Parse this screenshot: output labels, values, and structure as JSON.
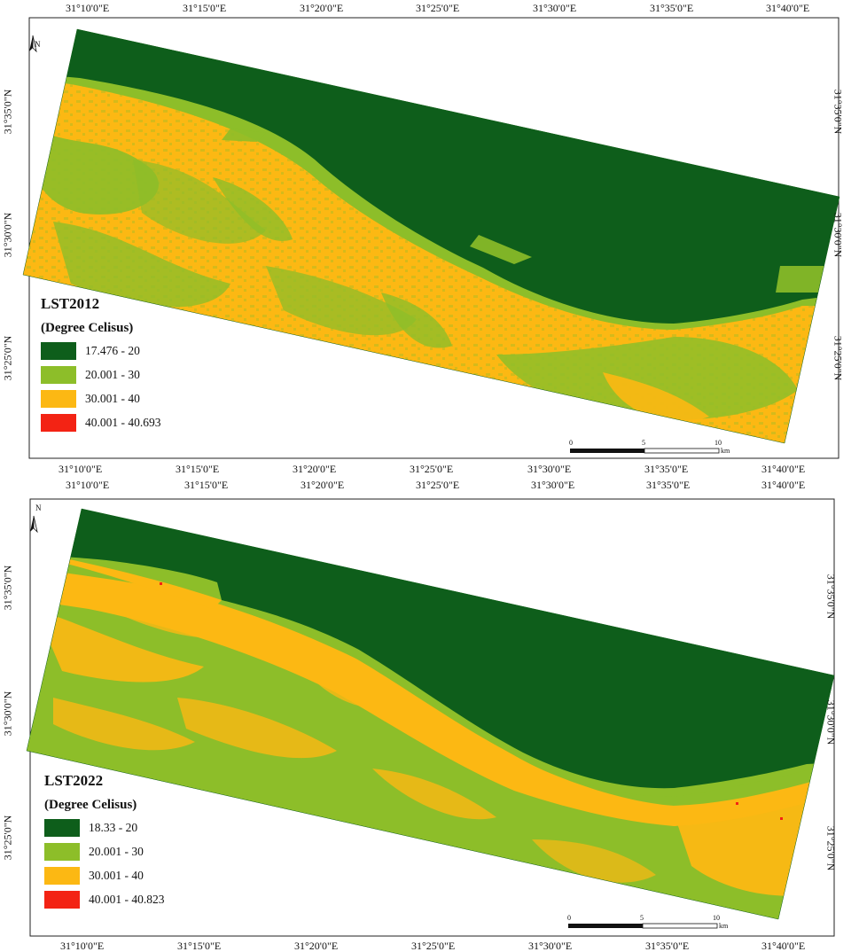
{
  "colors": {
    "dark_green": "#0e5e1b",
    "light_green": "#8dbe29",
    "yellow": "#fcb813",
    "red": "#f32314"
  },
  "maps": [
    {
      "legend_title": "LST2012",
      "legend_unit": "(Degree Celisus)",
      "legend": [
        "17.476 - 20",
        "20.001 - 30",
        "30.001 - 40",
        "40.001 - 40.693"
      ],
      "top_ticks": [
        "31°10'0\"E",
        "31°15'0\"E",
        "31°20'0\"E",
        "31°25'0\"E",
        "31°30'0\"E",
        "31°35'0\"E",
        "31°40'0\"E"
      ],
      "bottom_ticks": [
        "31°10'0\"E",
        "31°15'0\"E",
        "31°20'0\"E",
        "31°25'0\"E",
        "31°30'0\"E",
        "31°35'0\"E",
        "31°40'0\"E"
      ],
      "left_ticks": [
        "31°35'0\"N",
        "31°30'0\"N",
        "31°25'0\"N"
      ],
      "right_ticks": [
        "31°35'0\"N",
        "31°30'0\"N",
        "31°25'0\"N"
      ],
      "scale": [
        "0",
        "5",
        "10",
        "km"
      ],
      "north": "N"
    },
    {
      "legend_title": "LST2022",
      "legend_unit": "(Degree Celisus)",
      "legend": [
        "18.33 - 20",
        "20.001 - 30",
        "30.001 - 40",
        "40.001 - 40.823"
      ],
      "top_ticks": [
        "31°10'0\"E",
        "31°15'0\"E",
        "31°20'0\"E",
        "31°25'0\"E",
        "31°30'0\"E",
        "31°35'0\"E",
        "31°40'0\"E"
      ],
      "bottom_ticks": [
        "31°10'0\"E",
        "31°15'0\"E",
        "31°20'0\"E",
        "31°25'0\"E",
        "31°30'0\"E",
        "31°35'0\"E",
        "31°40'0\"E"
      ],
      "left_ticks": [
        "31°35'0\"N",
        "31°30'0\"N",
        "31°25'0\"N"
      ],
      "right_ticks": [
        "31°35'0\"N",
        "31°30'0\"N",
        "31°25'0\"N"
      ],
      "scale": [
        "0",
        "5",
        "10",
        "km"
      ],
      "north": "N"
    }
  ]
}
